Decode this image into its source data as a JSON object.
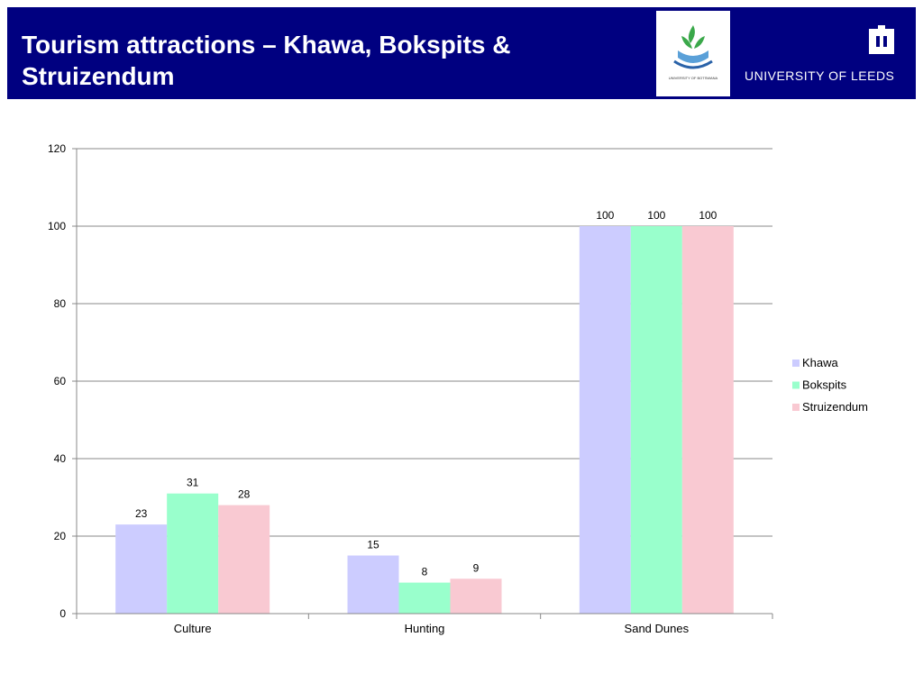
{
  "header": {
    "title_line1": "Tourism attractions – Khawa, Bokspits &",
    "title_line2": "Struizendum",
    "leeds_name": "UNIVERSITY OF LEEDS",
    "botswana_logo_text": "UNIVERSITY OF BOTSWANA"
  },
  "colors": {
    "header_bg": "#000080",
    "Khawa": "#ccccff",
    "Bokspits": "#99ffcc",
    "Struizendum": "#f9c9d2",
    "gridline": "#888888"
  },
  "chart_data": {
    "type": "bar",
    "categories": [
      "Culture",
      "Hunting",
      "Sand Dunes"
    ],
    "series": [
      {
        "name": "Khawa",
        "values": [
          23,
          15,
          100
        ]
      },
      {
        "name": "Bokspits",
        "values": [
          31,
          8,
          100
        ]
      },
      {
        "name": "Struizendum",
        "values": [
          28,
          9,
          100
        ]
      }
    ],
    "ylim": [
      0,
      120
    ],
    "yticks": [
      0,
      20,
      40,
      60,
      80,
      100,
      120
    ],
    "grid": true,
    "legend": "right",
    "data_labels": true
  }
}
